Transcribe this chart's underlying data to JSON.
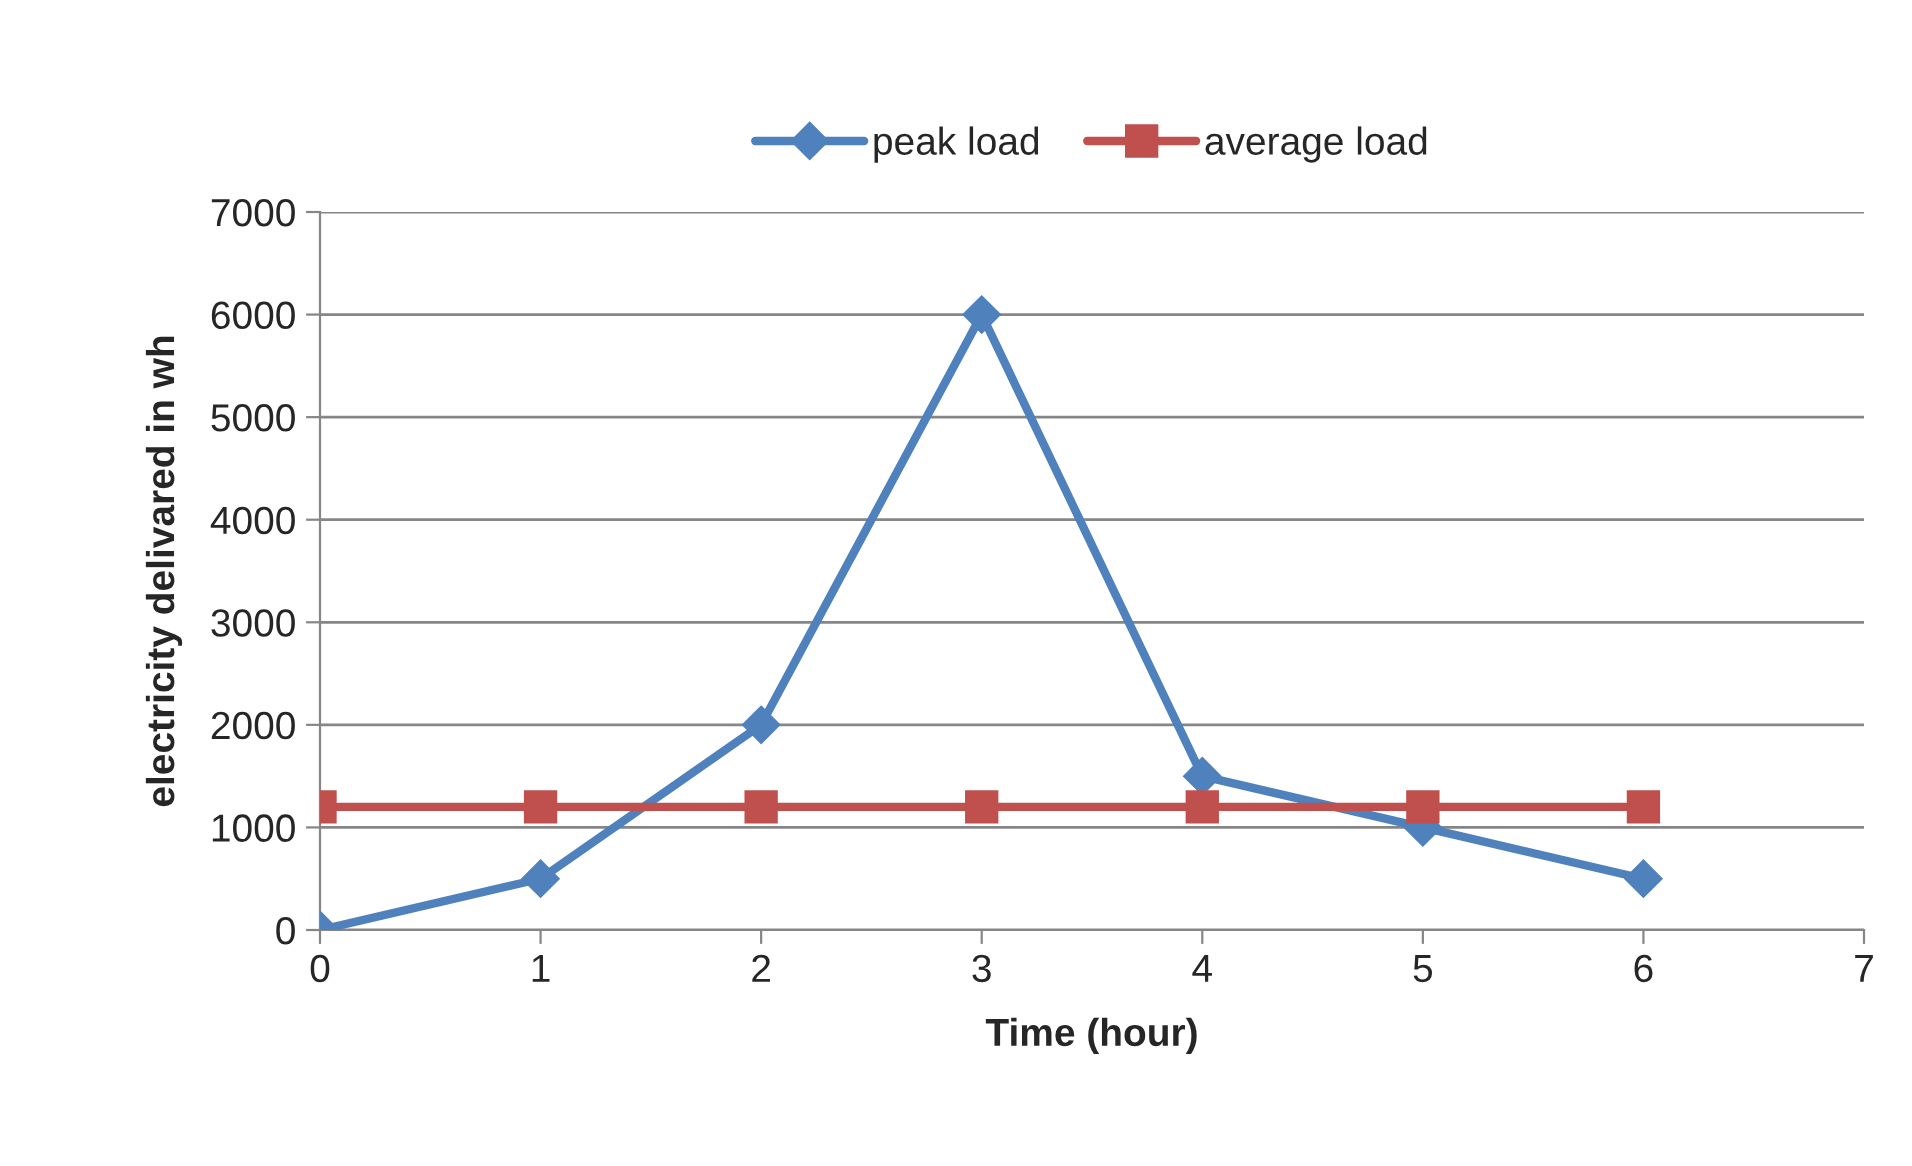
{
  "chart_data": {
    "type": "line",
    "xlabel": "Time (hour)",
    "ylabel": "electricity delivared in wh",
    "x": [
      0,
      1,
      2,
      3,
      4,
      5,
      6
    ],
    "series": [
      {
        "name": "peak load",
        "color": "#4f81bd",
        "marker": "diamond",
        "values": [
          0,
          500,
          2000,
          6000,
          1500,
          1000,
          500
        ]
      },
      {
        "name": "average load",
        "color": "#c0504d",
        "marker": "square",
        "values": [
          1200,
          1200,
          1200,
          1200,
          1200,
          1200,
          1200
        ]
      }
    ],
    "xlim": [
      0,
      7
    ],
    "xticks": [
      0,
      1,
      2,
      3,
      4,
      5,
      6,
      7
    ],
    "ylim": [
      0,
      7000
    ],
    "yticks": [
      0,
      1000,
      2000,
      3000,
      4000,
      5000,
      6000,
      7000
    ],
    "grid": "y",
    "legend": "top",
    "line_style": "solid"
  }
}
